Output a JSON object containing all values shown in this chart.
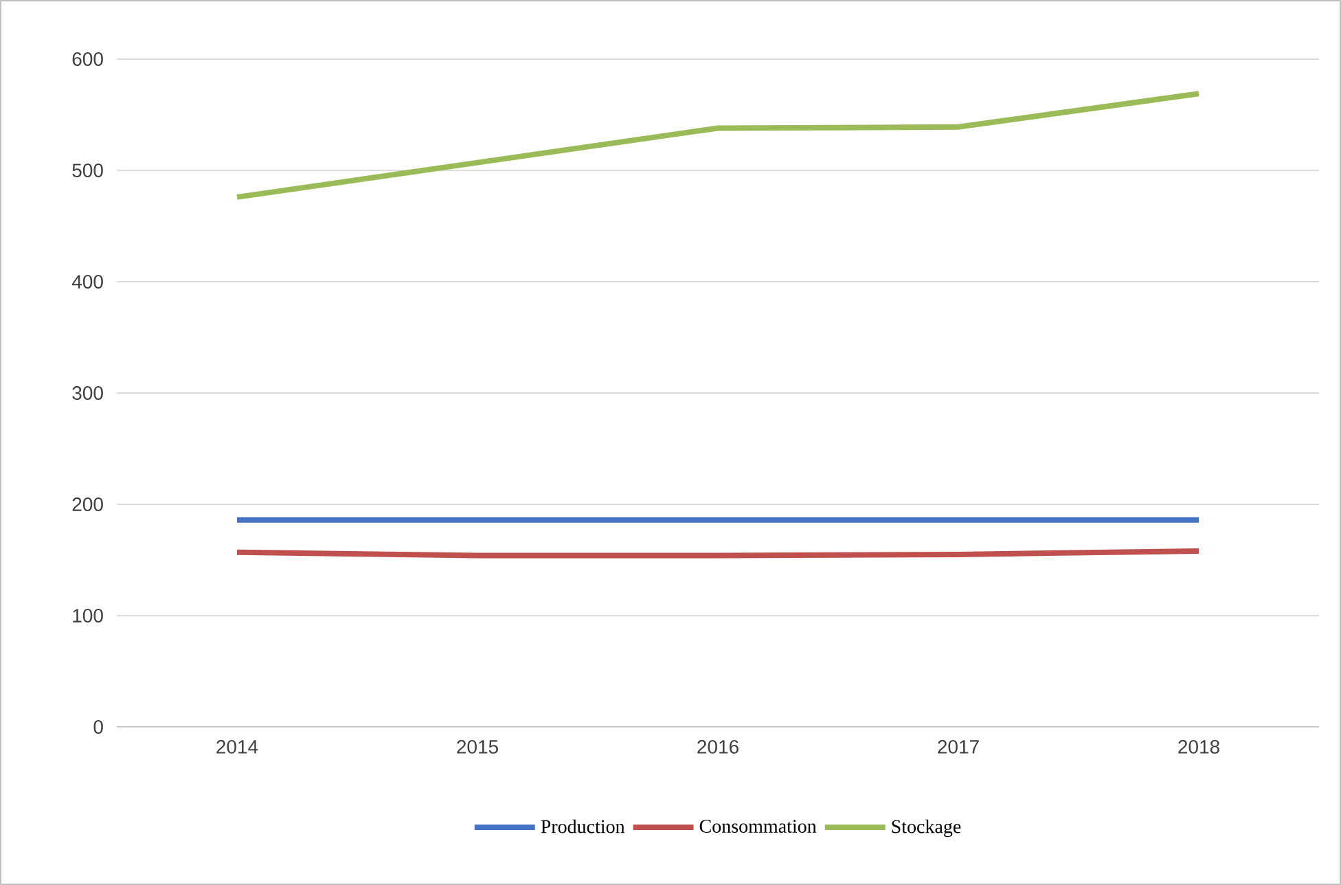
{
  "chart_data": {
    "type": "line",
    "categories": [
      "2014",
      "2015",
      "2016",
      "2017",
      "2018"
    ],
    "series": [
      {
        "name": "Production",
        "color": "#4472c4",
        "values": [
          186,
          186,
          186,
          186,
          186
        ]
      },
      {
        "name": "Consommation",
        "color": "#c0504d",
        "values": [
          157,
          154,
          154,
          155,
          158
        ]
      },
      {
        "name": "Stockage",
        "color": "#9bbb59",
        "values": [
          476,
          507,
          538,
          539,
          569
        ]
      }
    ],
    "ylim": [
      0,
      600
    ],
    "yticks": [
      0,
      100,
      200,
      300,
      400,
      500,
      600
    ],
    "grid": "y",
    "legend": "bottom",
    "marker": "none",
    "line_style": "solid"
  }
}
